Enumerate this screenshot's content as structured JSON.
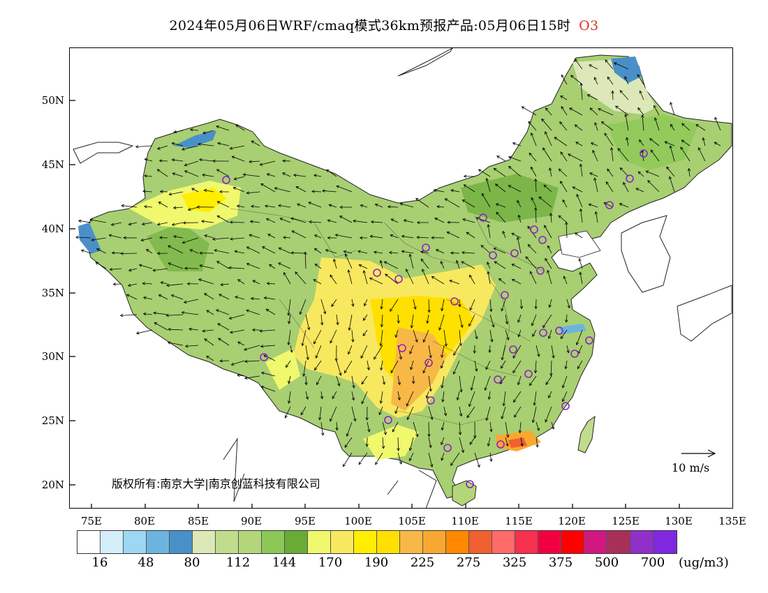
{
  "title": {
    "text": "2024年05月06日WRF/cmaq模式36km预报产品:05月06日15时",
    "species": "O3"
  },
  "map": {
    "lat_labels": [
      "50N",
      "45N",
      "40N",
      "35N",
      "30N",
      "25N",
      "20N"
    ],
    "lon_labels": [
      "75E",
      "80E",
      "85E",
      "90E",
      "95E",
      "100E",
      "105E",
      "110E",
      "115E",
      "120E",
      "125E",
      "130E",
      "135E"
    ],
    "copyright": "版权所有:南京大学|南京创蓝科技有限公司",
    "wind_scale_label": "10 m/s"
  },
  "legend": {
    "colors": [
      "#ffffff",
      "#d4eefa",
      "#9ed7f3",
      "#6cb4e0",
      "#4a90c8",
      "#dce8b8",
      "#c0dc8c",
      "#b4d67a",
      "#8cc855",
      "#6aab38",
      "#f0f86e",
      "#f8e860",
      "#ffee00",
      "#ffe000",
      "#f8b848",
      "#f8a830",
      "#ff8800",
      "#f06030",
      "#ff6a6a",
      "#f83050",
      "#f00040",
      "#ff0000",
      "#d01880",
      "#a83058",
      "#9030c8",
      "#8028e0"
    ],
    "labels": [
      "16",
      "48",
      "80",
      "112",
      "144",
      "170",
      "190",
      "225",
      "275",
      "325",
      "375",
      "500",
      "700"
    ],
    "unit": "(ug/m3)"
  },
  "colors": {
    "title_species": "#e0302a",
    "city_marker": "#9020c0",
    "background_land": "#a8cf72"
  }
}
